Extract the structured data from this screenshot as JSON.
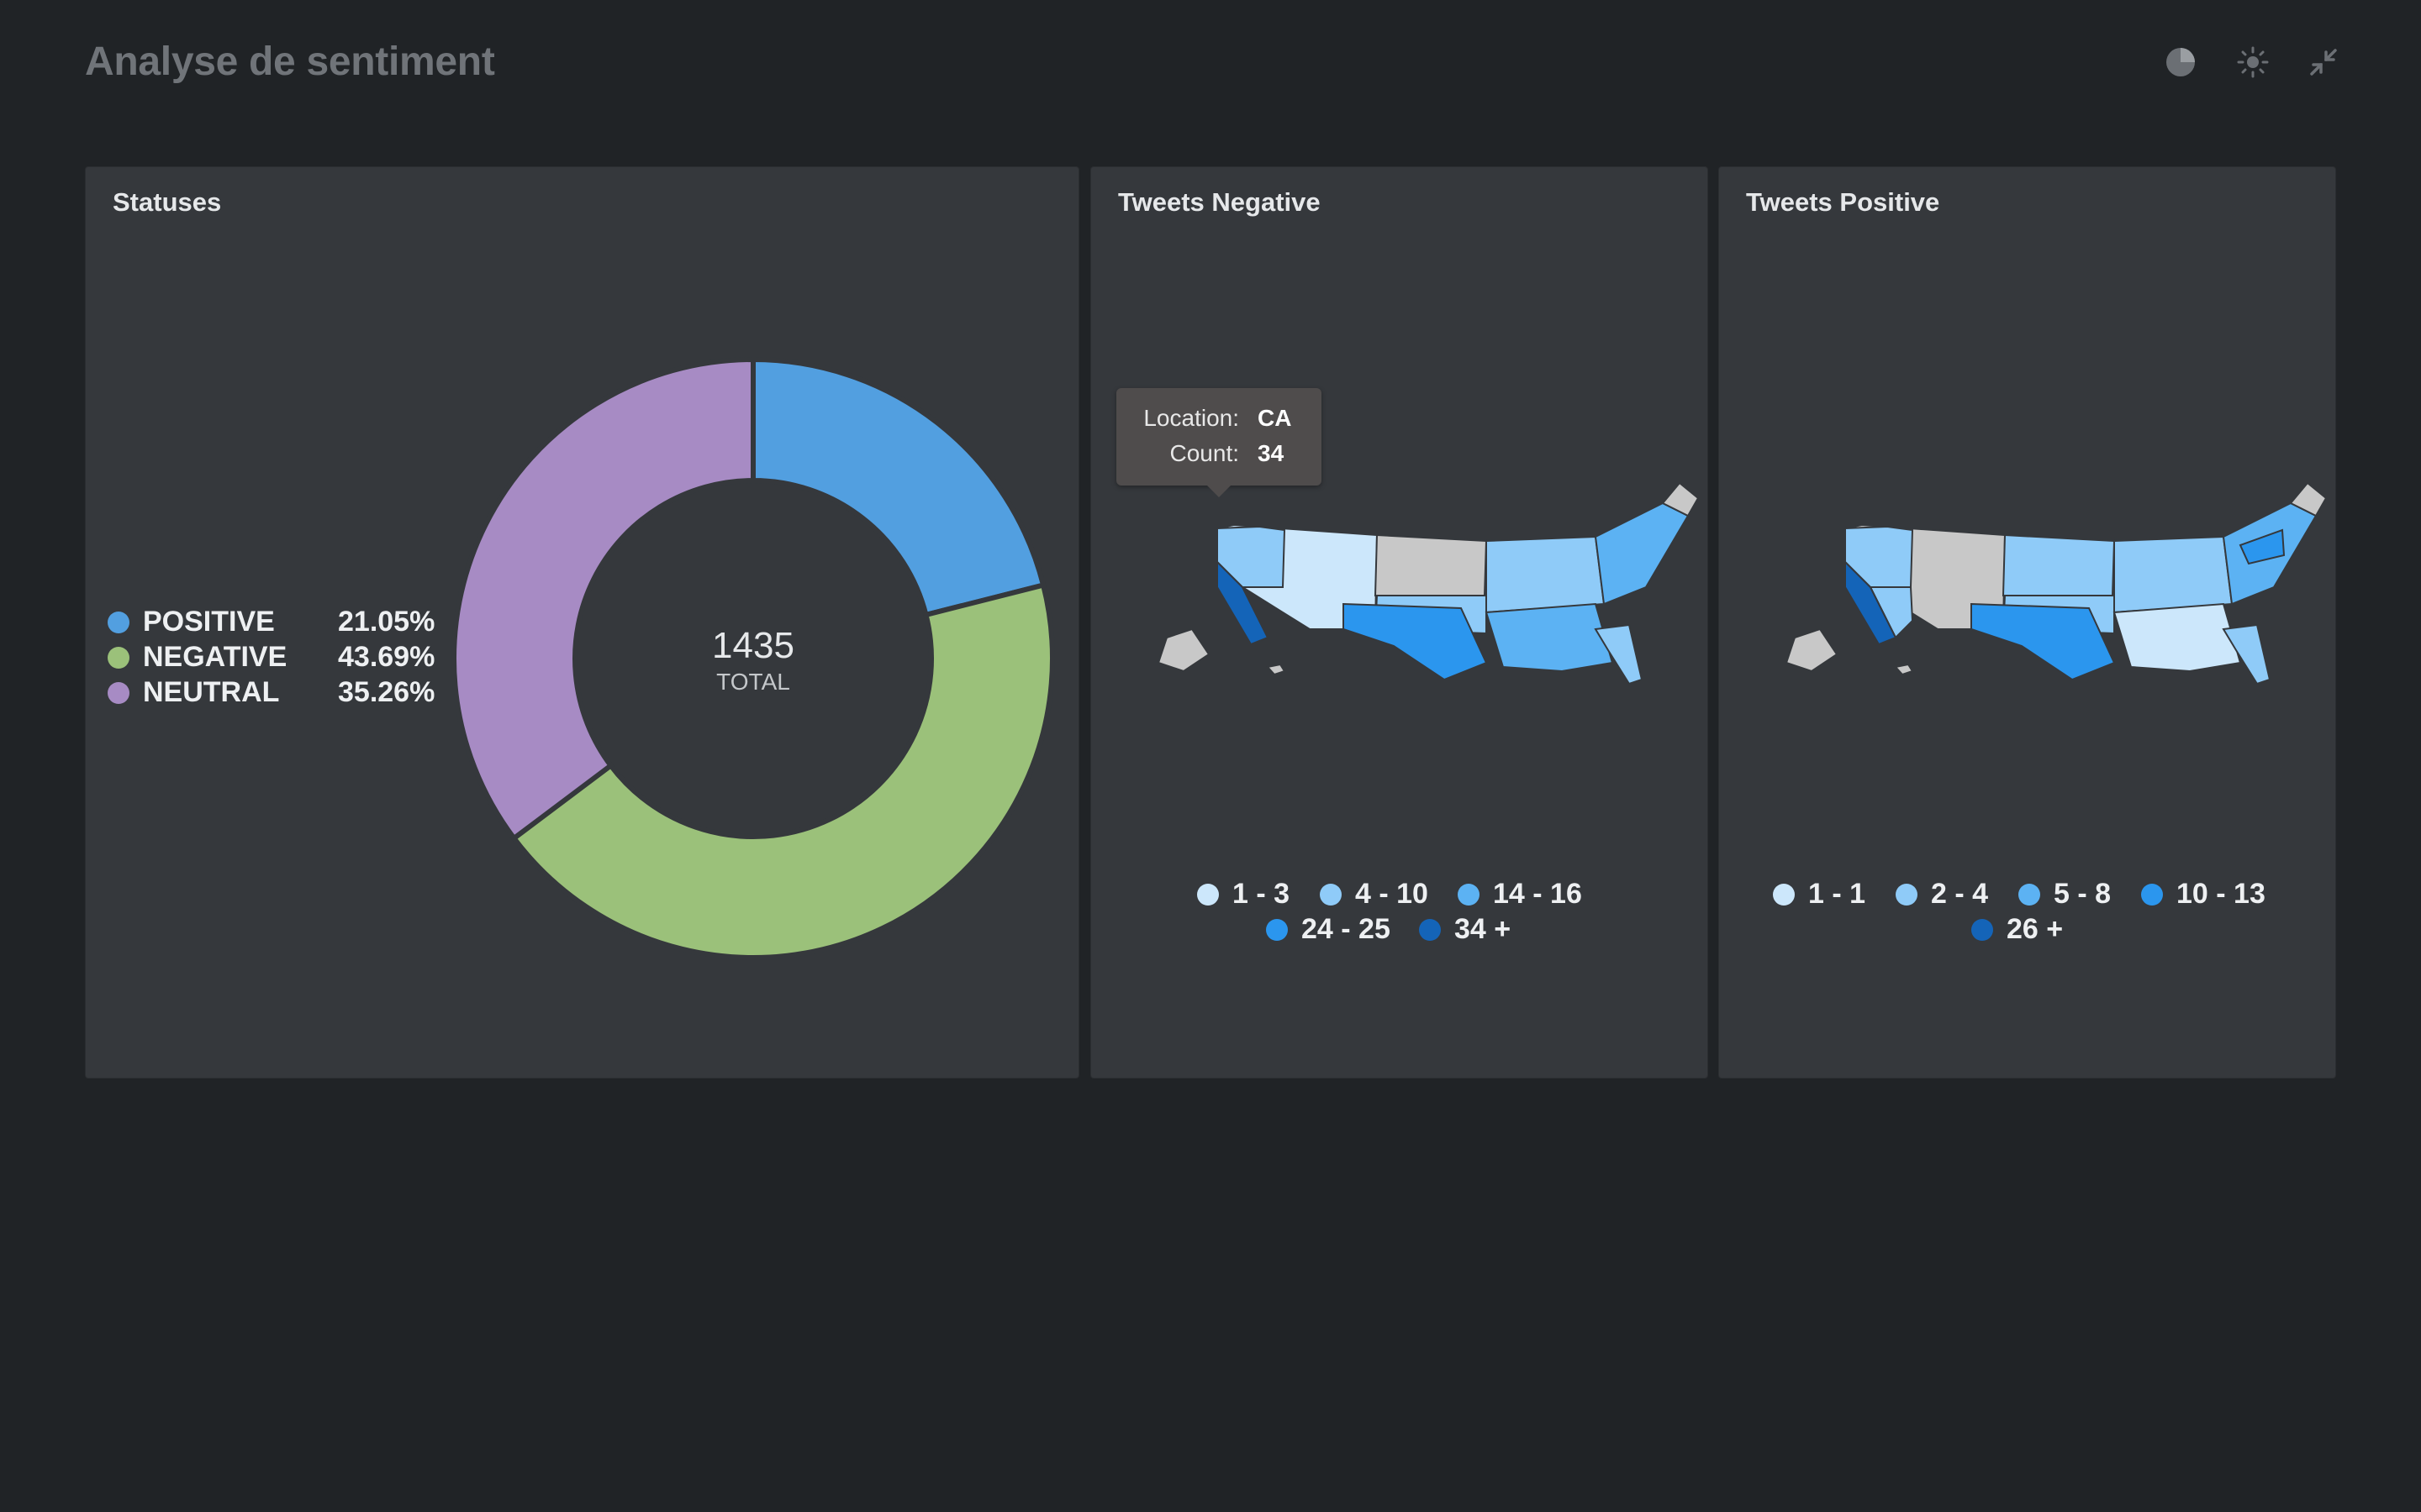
{
  "header": {
    "title": "Analyse de sentiment",
    "icons": [
      "pie-chart-icon",
      "sun-icon",
      "collapse-icon"
    ]
  },
  "colors": {
    "background": "#202326",
    "card": "#35383c",
    "positive": "#529fe0",
    "negative": "#9bc17a",
    "neutral": "#a78bc4",
    "no_data": "#c8c8c8"
  },
  "statuses": {
    "title": "Statuses",
    "total_value": "1435",
    "total_label": "TOTAL",
    "legend": [
      {
        "name": "POSITIVE",
        "pct": "21.05%",
        "color": "#529fe0"
      },
      {
        "name": "NEGATIVE",
        "pct": "43.69%",
        "color": "#9bc17a"
      },
      {
        "name": "NEUTRAL",
        "pct": "35.26%",
        "color": "#a78bc4"
      }
    ]
  },
  "negative_map": {
    "title": "Tweets Negative",
    "legend": [
      {
        "label": "1 - 3",
        "color": "#cce7fb"
      },
      {
        "label": "4 - 10",
        "color": "#8fcbf8"
      },
      {
        "label": "14 - 16",
        "color": "#5cb2f3"
      },
      {
        "label": "24 - 25",
        "color": "#2b96ee"
      },
      {
        "label": "34 +",
        "color": "#1464b8"
      }
    ],
    "tooltip": {
      "location_key": "Location:",
      "location_value": "CA",
      "count_key": "Count:",
      "count_value": "34"
    }
  },
  "positive_map": {
    "title": "Tweets Positive",
    "legend": [
      {
        "label": "1 - 1",
        "color": "#cce7fb"
      },
      {
        "label": "2 - 4",
        "color": "#8fcbf8"
      },
      {
        "label": "5 - 8",
        "color": "#5cb2f3"
      },
      {
        "label": "10 - 13",
        "color": "#2b96ee"
      },
      {
        "label": "26 +",
        "color": "#1464b8"
      }
    ]
  },
  "chart_data": [
    {
      "type": "pie",
      "title": "Statuses",
      "categories": [
        "POSITIVE",
        "NEGATIVE",
        "NEUTRAL"
      ],
      "values": [
        21.05,
        43.69,
        35.26
      ],
      "total": 1435,
      "legend_position": "left"
    }
  ]
}
